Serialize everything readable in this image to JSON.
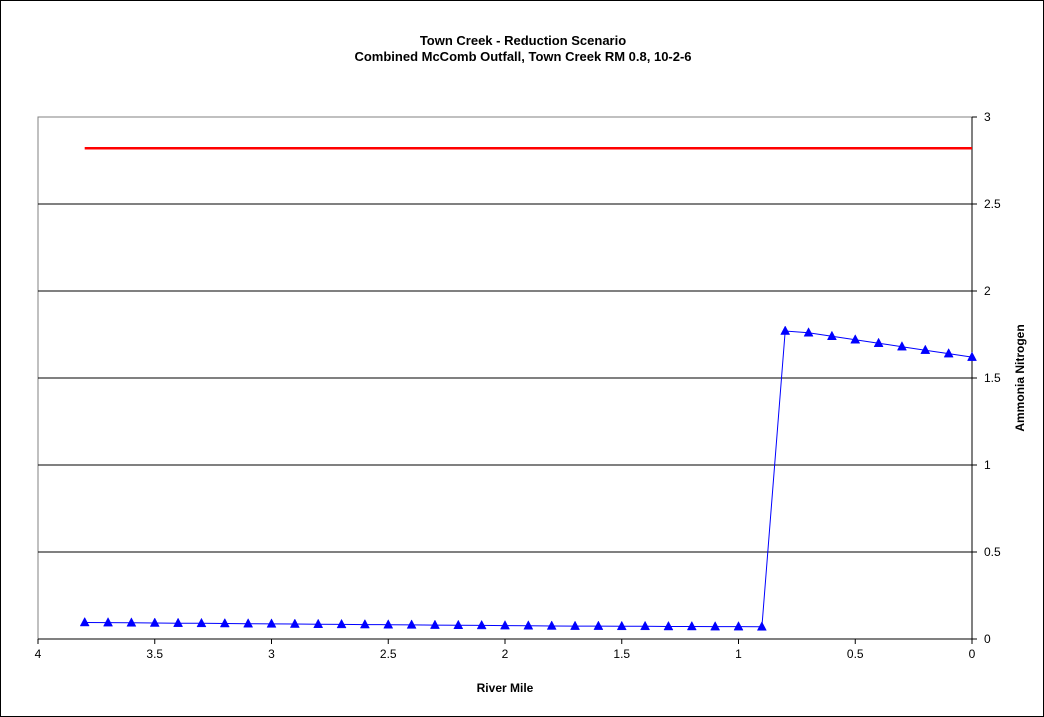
{
  "chart_data": {
    "type": "line",
    "title": "Town Creek - Reduction Scenario",
    "subtitle": "Combined McComb Outfall, Town Creek RM 0.8, 10-2-6",
    "xlabel": "River Mile",
    "ylabel": "Ammonia Nitrogen",
    "xlim": [
      4,
      0
    ],
    "ylim": [
      0,
      3
    ],
    "x_reversed": true,
    "y_axis_side": "right",
    "grid": "horizontal",
    "x_ticks": [
      "4",
      "3.5",
      "3",
      "2.5",
      "2",
      "1.5",
      "1",
      "0.5",
      "0"
    ],
    "y_ticks": [
      "0",
      "0.5",
      "1",
      "1.5",
      "2",
      "2.5",
      "3"
    ],
    "series": [
      {
        "color": "#0000ff",
        "marker": "triangle",
        "x": [
          3.8,
          3.7,
          3.6,
          3.5,
          3.4,
          3.3,
          3.2,
          3.1,
          3.0,
          2.9,
          2.8,
          2.7,
          2.6,
          2.5,
          2.4,
          2.3,
          2.2,
          2.1,
          2.0,
          1.9,
          1.8,
          1.7,
          1.6,
          1.5,
          1.4,
          1.3,
          1.2,
          1.1,
          1.0,
          0.9,
          0.8,
          0.7,
          0.6,
          0.5,
          0.4,
          0.3,
          0.2,
          0.1,
          0.0
        ],
        "y": [
          0.095,
          0.094,
          0.093,
          0.092,
          0.091,
          0.09,
          0.089,
          0.088,
          0.087,
          0.086,
          0.085,
          0.084,
          0.083,
          0.082,
          0.081,
          0.08,
          0.079,
          0.078,
          0.077,
          0.076,
          0.075,
          0.074,
          0.074,
          0.073,
          0.073,
          0.072,
          0.072,
          0.071,
          0.071,
          0.07,
          1.77,
          1.76,
          1.74,
          1.72,
          1.7,
          1.68,
          1.66,
          1.64,
          1.62
        ]
      },
      {
        "color": "#ff0000",
        "marker": "none",
        "x": [
          3.8,
          0.0
        ],
        "y": [
          2.82,
          2.82
        ]
      }
    ]
  }
}
